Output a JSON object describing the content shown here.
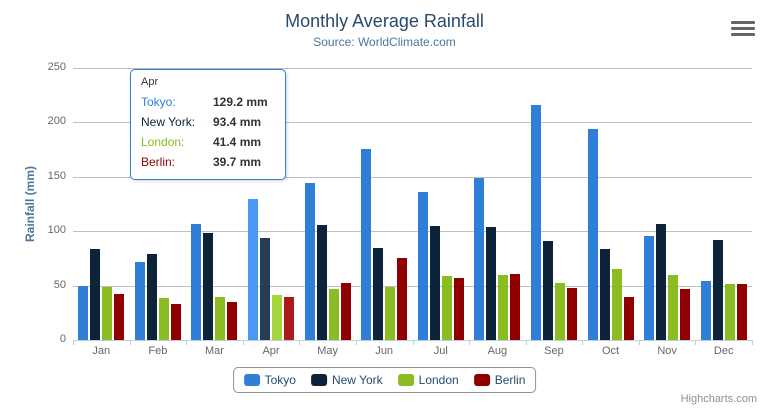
{
  "chart": {
    "title": "Monthly Average Rainfall",
    "subtitle": "Source: WorldClimate.com",
    "credits": "Highcharts.com"
  },
  "chart_data": {
    "type": "bar",
    "title": "Monthly Average Rainfall",
    "subtitle": "Source: WorldClimate.com",
    "ylabel": "Rainfall (mm)",
    "xlabel": "",
    "ylim": [
      0,
      250
    ],
    "yticks": [
      0,
      50,
      100,
      150,
      200,
      250
    ],
    "grid": true,
    "legend_position": "bottom",
    "hovered_category": "Apr",
    "categories": [
      "Jan",
      "Feb",
      "Mar",
      "Apr",
      "May",
      "Jun",
      "Jul",
      "Aug",
      "Sep",
      "Oct",
      "Nov",
      "Dec"
    ],
    "series": [
      {
        "name": "Tokyo",
        "color": "#2f7ed8",
        "hover_color": "#4998f2",
        "values": [
          49.9,
          71.5,
          106.4,
          129.2,
          144.0,
          176.0,
          135.6,
          148.5,
          216.4,
          194.1,
          95.6,
          54.4
        ]
      },
      {
        "name": "New York",
        "color": "#0d233a",
        "hover_color": "#273d54",
        "values": [
          83.6,
          78.8,
          98.5,
          93.4,
          106.0,
          84.5,
          105.0,
          104.3,
          91.2,
          83.5,
          106.6,
          92.3
        ]
      },
      {
        "name": "London",
        "color": "#8bbc21",
        "hover_color": "#a5d63b",
        "values": [
          48.9,
          38.8,
          39.3,
          41.4,
          47.0,
          48.3,
          59.0,
          59.6,
          52.4,
          65.2,
          59.3,
          51.2
        ]
      },
      {
        "name": "Berlin",
        "color": "#910000",
        "hover_color": "#ab1a1a",
        "values": [
          42.4,
          33.2,
          34.5,
          39.7,
          52.6,
          75.5,
          57.4,
          60.4,
          47.6,
          39.1,
          46.8,
          51.1
        ]
      }
    ]
  },
  "tooltip": {
    "header": "Apr",
    "rows": [
      {
        "label": "Tokyo:",
        "value": "129.2 mm",
        "color": "#2f7ed8"
      },
      {
        "label": "New York:",
        "value": "93.4 mm",
        "color": "#0d233a"
      },
      {
        "label": "London:",
        "value": "41.4 mm",
        "color": "#8bbc21"
      },
      {
        "label": "Berlin:",
        "value": "39.7 mm",
        "color": "#910000"
      }
    ]
  },
  "axis_colors": {
    "gridline": "#c0c0c0",
    "axis_line": "#c0d0e0",
    "label": "#666666",
    "title": "#4d759e"
  }
}
